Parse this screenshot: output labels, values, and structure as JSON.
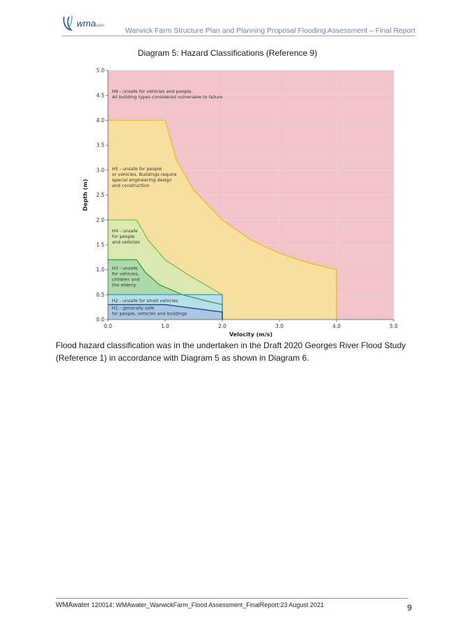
{
  "header": {
    "logo_text": "wma",
    "logo_subtext": "water",
    "title": "Warwick Farm Structure Plan and Planning Proposal Flooding Assessment – Final Report"
  },
  "caption": "Diagram 5: Hazard Classifications (Reference 9)",
  "chart_data": {
    "type": "area",
    "title": "",
    "xlabel": "Velocity (m/s)",
    "ylabel": "Depth (m)",
    "xlim": [
      0,
      5
    ],
    "ylim": [
      0,
      5
    ],
    "x_ticks": [
      "0.0",
      "1.0",
      "2.0",
      "3.0",
      "4.0",
      "5.0"
    ],
    "y_ticks": [
      "0.0",
      "0.5",
      "1.0",
      "1.5",
      "2.0",
      "2.5",
      "3.0",
      "3.5",
      "4.0",
      "4.5",
      "5.0"
    ],
    "grid": true,
    "zones": [
      {
        "name": "H6",
        "label": [
          "H6 - unsafe for vehicles and people.",
          "All building types considered vulnerable to failure"
        ],
        "color": "#f2c4c9",
        "label_anchor": [
          0.07,
          4.55
        ]
      },
      {
        "name": "H5",
        "label": [
          "H5 - unsafe for people",
          "or vehicles. Buildings require",
          "special engineering design",
          "and construction"
        ],
        "color": "#f7e19b",
        "boundary_color": "#e8c21a",
        "label_anchor": [
          0.07,
          3.0
        ],
        "boundary": [
          [
            0,
            4.0
          ],
          [
            1.0,
            4.0
          ],
          [
            1.2,
            3.2
          ],
          [
            1.5,
            2.6
          ],
          [
            2.0,
            2.0
          ],
          [
            2.5,
            1.6
          ],
          [
            3.0,
            1.33
          ],
          [
            3.5,
            1.14
          ],
          [
            4.0,
            1.0
          ],
          [
            4.0,
            0
          ]
        ]
      },
      {
        "name": "H4",
        "label": [
          "H4 - unsafe",
          "for people",
          "and vehicles"
        ],
        "color": "#d7e9b0",
        "boundary_color": "#7cc04b",
        "label_anchor": [
          0.07,
          1.75
        ],
        "boundary": [
          [
            0,
            2.0
          ],
          [
            0.5,
            2.0
          ],
          [
            0.7,
            1.6
          ],
          [
            1.0,
            1.2
          ],
          [
            1.4,
            0.9
          ],
          [
            1.7,
            0.7
          ],
          [
            2.0,
            0.5
          ],
          [
            2.0,
            0
          ]
        ]
      },
      {
        "name": "H3",
        "label": [
          "H3 - unsafe",
          "for vehicles,",
          "children and",
          "the elderly"
        ],
        "color": "#a9d8a9",
        "boundary_color": "#3aa04a",
        "label_anchor": [
          0.07,
          1.0
        ],
        "boundary": [
          [
            0,
            1.2
          ],
          [
            0.5,
            1.2
          ],
          [
            0.65,
            0.95
          ],
          [
            0.9,
            0.7
          ],
          [
            1.3,
            0.5
          ],
          [
            1.7,
            0.38
          ],
          [
            2.0,
            0.3
          ],
          [
            2.0,
            0
          ]
        ]
      },
      {
        "name": "H2",
        "label": [
          "H2 - unsafe for small vehicles"
        ],
        "color": "#b9def0",
        "boundary_color": "#2aa5cf",
        "label_anchor": [
          0.07,
          0.35
        ],
        "boundary": [
          [
            0,
            0.5
          ],
          [
            2.0,
            0.5
          ],
          [
            2.0,
            0
          ]
        ]
      },
      {
        "name": "H1",
        "label": [
          "H1 - generally safe",
          "for people, vehicles and buildings"
        ],
        "color": "#a7c3e2",
        "boundary_color": "#1f4e8c",
        "label_anchor": [
          0.07,
          0.2
        ],
        "boundary": [
          [
            0,
            0.3
          ],
          [
            1.0,
            0.3
          ],
          [
            2.0,
            0.15
          ],
          [
            2.0,
            0
          ]
        ]
      }
    ]
  },
  "body_text": "Flood hazard classification was in the undertaken in the Draft 2020 Georges River Flood Study (Reference 1) in accordance with Diagram 5 as shown in Diagram 6.",
  "footer": {
    "brand": "WMAwater",
    "text": " 120014: WMAwater_WarwickFarm_Flood Assessment_FinalReport:23 August 2021",
    "page_number": "9"
  }
}
